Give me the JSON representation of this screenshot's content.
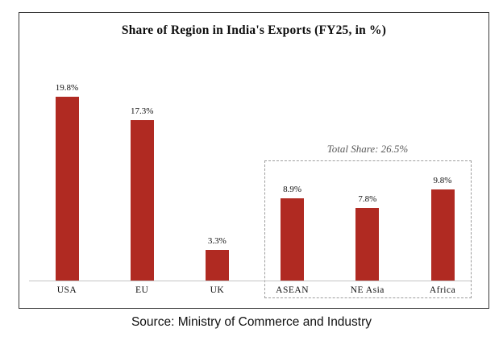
{
  "chart_data": {
    "type": "bar",
    "title": "Share of Region in India's Exports (FY25, in %)",
    "categories": [
      "USA",
      "EU",
      "UK",
      "ASEAN",
      "NE Asia",
      "Africa"
    ],
    "values": [
      19.8,
      17.3,
      3.3,
      8.9,
      7.8,
      9.8
    ],
    "value_labels": [
      "19.8%",
      "17.3%",
      "3.3%",
      "8.9%",
      "7.8%",
      "9.8%"
    ],
    "bar_color": "#b02a22",
    "ylim": [
      0,
      22
    ],
    "grid": false,
    "legend": false,
    "annotation": {
      "text": "Total Share: 26.5%",
      "applies_to": [
        "ASEAN",
        "NE Asia",
        "Africa"
      ],
      "style": "dashed-box"
    },
    "source": "Source: Ministry of Commerce and Industry"
  }
}
